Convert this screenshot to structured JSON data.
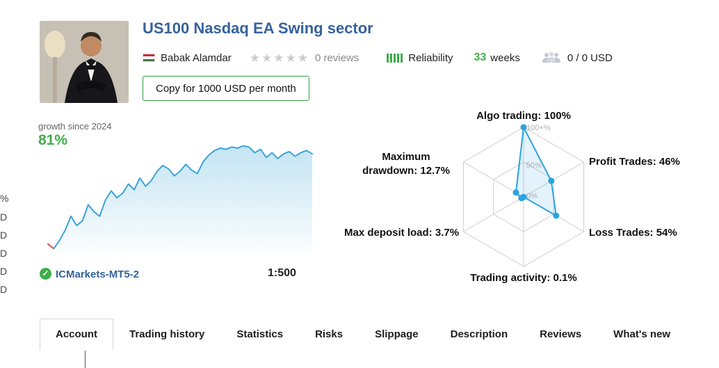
{
  "header": {
    "title": "US100 Nasdaq EA Swing sector",
    "author": "Babak Alamdar",
    "stars_count": 5,
    "reviews_label": "0 reviews",
    "reliability_label": "Reliability",
    "weeks_value": "33",
    "weeks_label": "weeks",
    "funds_label": "0 / 0 USD",
    "copy_button_label": "Copy for 1000 USD per month"
  },
  "growth": {
    "caption": "growth since 2024",
    "value": "81%",
    "account_name": "ICMarkets-MT5-2",
    "leverage": "1:500"
  },
  "icons": {
    "star": "★",
    "check": "✓"
  },
  "colors": {
    "accent_blue": "#36629c",
    "green": "#3fae49",
    "chart_blue": "#3aa4d8",
    "radar_blue": "#2ba3e0"
  },
  "edge_fragments": [
    "%",
    "D",
    "D",
    "D",
    "D",
    "D"
  ],
  "tabs": {
    "active": "Account",
    "items": [
      "Account",
      "Trading history",
      "Statistics",
      "Risks",
      "Slippage",
      "Description",
      "Reviews",
      "What's new"
    ]
  },
  "chart_data": [
    {
      "type": "area",
      "title": "growth since 2024",
      "unit": "%",
      "final_label": "81%",
      "values": [
        0,
        -4,
        3,
        12,
        24,
        16,
        20,
        34,
        28,
        24,
        38,
        46,
        40,
        44,
        52,
        47,
        57,
        50,
        55,
        63,
        68,
        65,
        59,
        63,
        69,
        64,
        61,
        71,
        77,
        81,
        83,
        82,
        84,
        83,
        85,
        84,
        79,
        82,
        75,
        79,
        74,
        78,
        80,
        76,
        79,
        81,
        78
      ],
      "ylim": [
        -8,
        92
      ],
      "line_color": "#3aa4d8",
      "start_segment_color": "#e2574c",
      "fill_rgb": "58,164,216"
    },
    {
      "type": "radar",
      "axes": [
        "Algo trading",
        "Profit Trades",
        "Loss Trades",
        "Trading activity",
        "Max deposit load",
        "Maximum drawdown"
      ],
      "values": [
        100,
        46,
        54,
        0.1,
        3.7,
        12.7
      ],
      "labels": [
        "Algo trading: 100%",
        "Profit Trades: 46%",
        "Loss Trades: 54%",
        "Trading activity: 0.1%",
        "Max deposit load: 3.7%",
        "Maximum drawdown: 12.7%"
      ],
      "rings": [
        "100+%",
        "50%",
        "0%"
      ],
      "max": 100,
      "grid_color": "#cccccc",
      "line_color": "#2ba3e0",
      "fill_color": "rgba(80,176,229,0.16)"
    }
  ]
}
